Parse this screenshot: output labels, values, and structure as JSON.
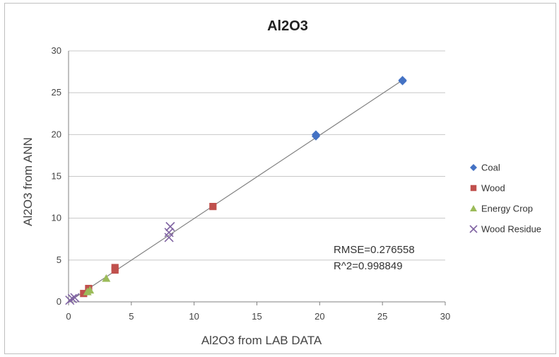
{
  "chart_data": {
    "type": "scatter",
    "title": "Al2O3",
    "xlabel": "Al2O3 from LAB DATA",
    "ylabel": "Al2O3 from ANN",
    "xlim": [
      0,
      30
    ],
    "ylim": [
      0,
      30
    ],
    "x_ticks": [
      0,
      5,
      10,
      15,
      20,
      25,
      30
    ],
    "y_ticks": [
      0,
      5,
      10,
      15,
      20,
      25,
      30
    ],
    "grid": "horizontal",
    "legend_position": "right",
    "series": [
      {
        "name": "Coal",
        "marker": "diamond",
        "color": "#4472c4",
        "points": [
          [
            19.7,
            19.8
          ],
          [
            19.7,
            20.0
          ],
          [
            26.6,
            26.4
          ],
          [
            26.6,
            26.5
          ]
        ]
      },
      {
        "name": "Wood",
        "marker": "square",
        "color": "#c0504d",
        "points": [
          [
            1.2,
            1.0
          ],
          [
            1.6,
            1.6
          ],
          [
            3.7,
            3.8
          ],
          [
            3.7,
            4.1
          ],
          [
            11.5,
            11.4
          ]
        ]
      },
      {
        "name": "Energy Crop",
        "marker": "triangle",
        "color": "#9bbb59",
        "points": [
          [
            1.5,
            1.2
          ],
          [
            1.7,
            1.4
          ],
          [
            3.0,
            2.8
          ]
        ]
      },
      {
        "name": "Wood Residue",
        "marker": "x",
        "color": "#8064a2",
        "points": [
          [
            0.1,
            0.2
          ],
          [
            0.3,
            0.4
          ],
          [
            0.5,
            0.5
          ],
          [
            8.0,
            7.7
          ],
          [
            8.0,
            8.3
          ],
          [
            8.1,
            9.0
          ]
        ]
      }
    ],
    "fit_line": {
      "from": [
        0,
        0
      ],
      "to": [
        26.6,
        26.5
      ],
      "color": "#808080"
    },
    "annotations": [
      "RMSE=0.276558",
      "R^2=0.998849"
    ]
  }
}
